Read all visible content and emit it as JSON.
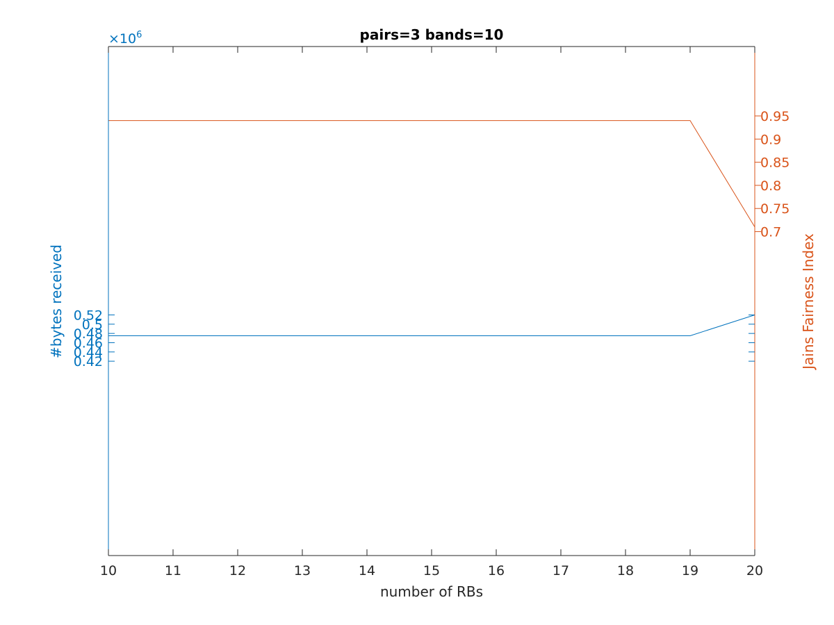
{
  "chart_data": {
    "type": "line",
    "title": "pairs=3 bands=10",
    "xlabel": "number of RBs",
    "xlim": [
      10,
      20
    ],
    "xticks": [
      "10",
      "11",
      "12",
      "13",
      "14",
      "15",
      "16",
      "17",
      "18",
      "19",
      "20"
    ],
    "left_axis": {
      "label": "#bytes received",
      "exponent_label": "×10",
      "exponent_power": "6",
      "color": "#0072bd",
      "ylim": [
        0.0,
        1.1
      ],
      "ticks": [
        0.42,
        0.44,
        0.46,
        0.48,
        0.5,
        0.52
      ],
      "tick_labels": [
        "0.42",
        "0.44",
        "0.46",
        "0.48",
        "0.5",
        "0.52"
      ]
    },
    "right_axis": {
      "label": "Jains Fairness Index",
      "color": "#d95319",
      "ylim": [
        0.0,
        1.1
      ],
      "ticks": [
        0.7,
        0.75,
        0.8,
        0.85,
        0.9,
        0.95
      ],
      "tick_labels": [
        "0.7",
        "0.75",
        "0.8",
        "0.85",
        "0.9",
        "0.95"
      ]
    },
    "series": [
      {
        "axis": "left",
        "color": "#0072bd",
        "x": [
          10,
          11,
          12,
          13,
          14,
          15,
          16,
          17,
          18,
          19,
          20
        ],
        "values": [
          0.475,
          0.475,
          0.475,
          0.475,
          0.475,
          0.475,
          0.475,
          0.475,
          0.475,
          0.475,
          0.52
        ]
      },
      {
        "axis": "right",
        "color": "#d95319",
        "x": [
          10,
          11,
          12,
          13,
          14,
          15,
          16,
          17,
          18,
          19,
          20
        ],
        "values": [
          0.94,
          0.94,
          0.94,
          0.94,
          0.94,
          0.94,
          0.94,
          0.94,
          0.94,
          0.94,
          0.71
        ]
      }
    ],
    "grid": false
  }
}
